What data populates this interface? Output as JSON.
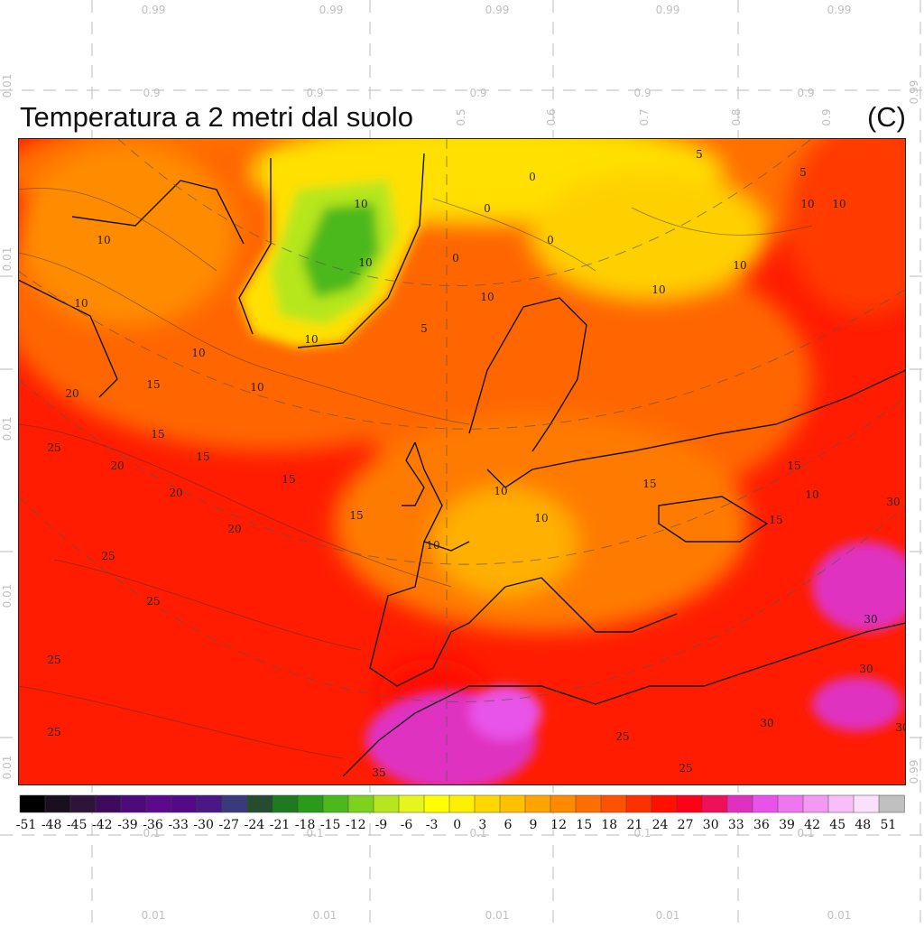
{
  "title": "Temperatura a 2 metri dal suolo",
  "unit": "(C)",
  "colorbar": {
    "ticks": [
      "-51",
      "-48",
      "-45",
      "-42",
      "-39",
      "-36",
      "-33",
      "-30",
      "-27",
      "-24",
      "-21",
      "-18",
      "-15",
      "-12",
      "-9",
      "-6",
      "-3",
      "0",
      "3",
      "6",
      "9",
      "12",
      "15",
      "18",
      "21",
      "24",
      "27",
      "30",
      "33",
      "36",
      "39",
      "42",
      "45",
      "48",
      "51"
    ],
    "colors": [
      "#000000",
      "#1a0f1f",
      "#2e1438",
      "#3d0a5e",
      "#4d0a7a",
      "#5a0a8a",
      "#520a86",
      "#4a1884",
      "#3a3a7a",
      "#264c30",
      "#1e7a1e",
      "#2a9a1a",
      "#4bb81c",
      "#7ed21e",
      "#b6e61e",
      "#e6f51e",
      "#ffff00",
      "#ffef00",
      "#ffd800",
      "#ffc000",
      "#ffa400",
      "#ff8a00",
      "#ff6e00",
      "#ff5200",
      "#ff3000",
      "#ff1000",
      "#ff0018",
      "#f0105a",
      "#e030c0",
      "#e852e8",
      "#ee76ee",
      "#f29af2",
      "#f7bef7",
      "#fbe0fb",
      "#c0c0c0"
    ]
  },
  "contour_labels": [
    "5",
    "10",
    "15",
    "20",
    "25",
    "30",
    "35",
    "0"
  ],
  "overlay_labels": {
    "top": [
      "0.99",
      "0.99",
      "0.99",
      "0.99",
      "0.99"
    ],
    "row2": [
      "0.9",
      "0.9",
      "0.9",
      "0.9",
      "0.9"
    ],
    "row2b": [
      "0.5",
      "0.6",
      "0.7",
      "0.8",
      "0.9"
    ],
    "left": [
      "0.01",
      "0.01",
      "0.01",
      "0.01",
      "0.01"
    ],
    "right": [
      "0.99",
      "0.99"
    ],
    "bottom_mid": [
      "0.1",
      "0.1",
      "0.1",
      "0.1",
      "0.1"
    ],
    "bottom": [
      "0.01",
      "0.01",
      "0.01",
      "0.01",
      "0.01"
    ]
  },
  "colors": {
    "sea_warm": "#ff1a00",
    "ice": "#ffff00",
    "greenland": "#4bb81c",
    "hot": "#e030c0"
  }
}
